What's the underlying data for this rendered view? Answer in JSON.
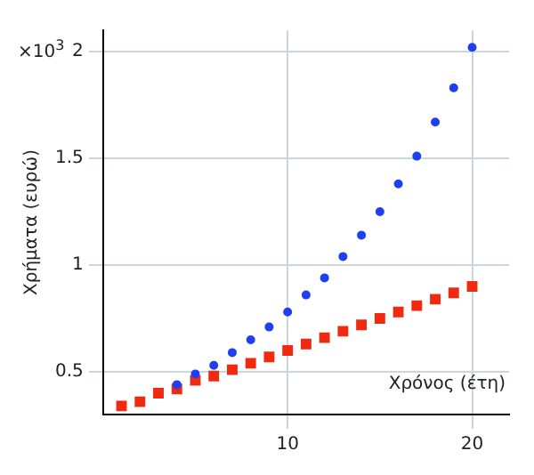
{
  "chart_data": {
    "type": "scatter",
    "xlabel": "Χρόνος (έτη)",
    "ylabel": "Χρήματα (ευρώ)",
    "annotations": [
      "×10$^{3}$"
    ],
    "x": [
      1,
      2,
      3,
      4,
      5,
      6,
      7,
      8,
      9,
      10,
      11,
      12,
      13,
      14,
      15,
      16,
      17,
      18,
      19,
      20
    ],
    "series": [
      {
        "color": "#1f3ff0",
        "marker": "circle",
        "values": [
          null,
          null,
          null,
          0.44,
          0.49,
          0.53,
          0.59,
          0.65,
          0.71,
          0.78,
          0.86,
          0.94,
          1.04,
          1.14,
          1.25,
          1.38,
          1.51,
          1.67,
          1.83,
          2.02
        ]
      },
      {
        "color": "#f02a10",
        "marker": "square",
        "values": [
          0.34,
          0.36,
          0.4,
          0.42,
          0.46,
          0.48,
          0.51,
          0.54,
          0.57,
          0.6,
          0.63,
          0.66,
          0.69,
          0.72,
          0.75,
          0.78,
          0.81,
          0.84,
          0.87,
          0.9
        ]
      }
    ],
    "xlim": [
      0,
      22
    ],
    "xticks": [
      10,
      20
    ],
    "ylim": [
      0.3,
      2.1
    ],
    "yticks": [
      0.5,
      1,
      1.5,
      2
    ],
    "grid": true,
    "legend": false
  }
}
